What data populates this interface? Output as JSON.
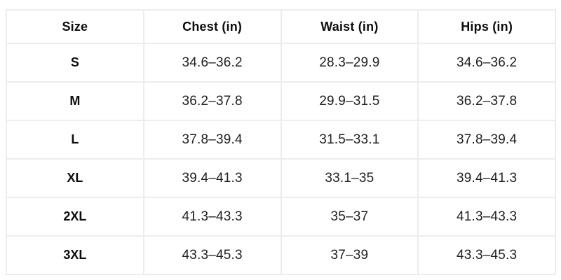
{
  "colors": {
    "background": "#ffffff",
    "grid_border": "#ededed",
    "header_text": "#0d0d0d",
    "body_text": "#1f1f1f"
  },
  "chart_data": {
    "type": "table",
    "columns": [
      "Size",
      "Chest (in)",
      "Waist (in)",
      "Hips (in)"
    ],
    "rows": [
      [
        "S",
        "34.6–36.2",
        "28.3–29.9",
        "34.6–36.2"
      ],
      [
        "M",
        "36.2–37.8",
        "29.9–31.5",
        "36.2–37.8"
      ],
      [
        "L",
        "37.8–39.4",
        "31.5–33.1",
        "37.8–39.4"
      ],
      [
        "XL",
        "39.4–41.3",
        "33.1–35",
        "39.4–41.3"
      ],
      [
        "2XL",
        "41.3–43.3",
        "35–37",
        "41.3–43.3"
      ],
      [
        "3XL",
        "43.3–45.3",
        "37–39",
        "43.3–45.3"
      ]
    ]
  }
}
